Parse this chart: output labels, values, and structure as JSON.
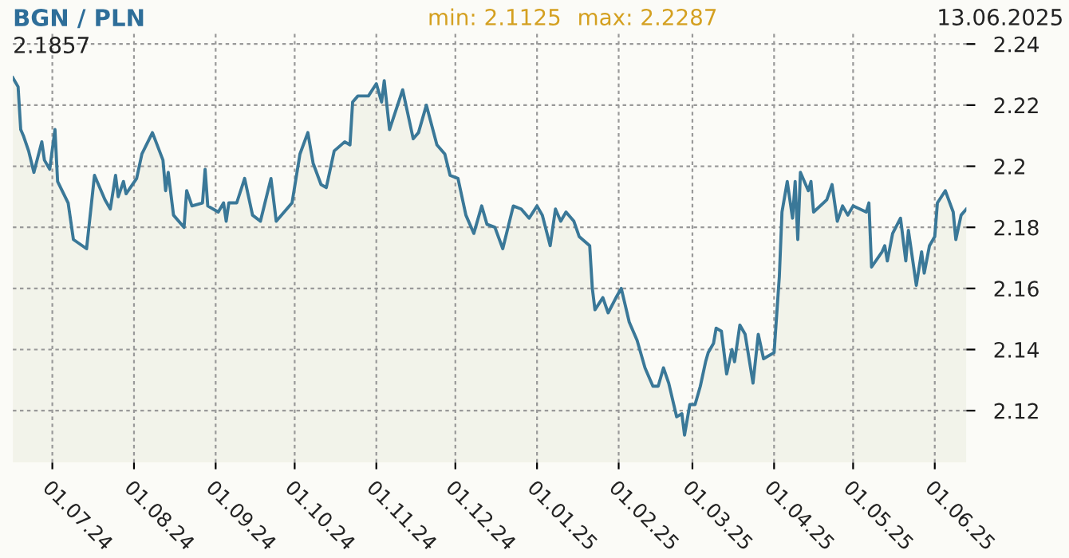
{
  "chart_data": {
    "type": "area",
    "title": "BGN / PLN",
    "annotations": [
      "min: 2.1125",
      "max: 2.2287",
      "13.06.2025",
      "2.1857"
    ],
    "x": [
      "2024-06-16",
      "2024-06-18",
      "2024-06-19",
      "2024-06-20",
      "2024-06-22",
      "2024-06-24",
      "2024-06-27",
      "2024-06-28",
      "2024-06-30",
      "2024-07-02",
      "2024-07-03",
      "2024-07-07",
      "2024-07-09",
      "2024-07-14",
      "2024-07-17",
      "2024-07-21",
      "2024-07-23",
      "2024-07-25",
      "2024-07-26",
      "2024-07-28",
      "2024-07-29",
      "2024-08-02",
      "2024-08-04",
      "2024-08-08",
      "2024-08-12",
      "2024-08-13",
      "2024-08-14",
      "2024-08-16",
      "2024-08-20",
      "2024-08-21",
      "2024-08-23",
      "2024-08-27",
      "2024-08-28",
      "2024-08-29",
      "2024-09-02",
      "2024-09-04",
      "2024-09-05",
      "2024-09-06",
      "2024-09-09",
      "2024-09-12",
      "2024-09-15",
      "2024-09-18",
      "2024-09-22",
      "2024-09-24",
      "2024-09-30",
      "2024-10-03",
      "2024-10-06",
      "2024-10-08",
      "2024-10-11",
      "2024-10-13",
      "2024-10-16",
      "2024-10-20",
      "2024-10-22",
      "2024-10-23",
      "2024-10-25",
      "2024-10-29",
      "2024-11-01",
      "2024-11-03",
      "2024-11-04",
      "2024-11-06",
      "2024-11-11",
      "2024-11-15",
      "2024-11-17",
      "2024-11-20",
      "2024-11-24",
      "2024-11-27",
      "2024-11-29",
      "2024-12-02",
      "2024-12-05",
      "2024-12-08",
      "2024-12-11",
      "2024-12-13",
      "2024-12-16",
      "2024-12-19",
      "2024-12-23",
      "2024-12-26",
      "2024-12-29",
      "2025-01-01",
      "2025-01-03",
      "2025-01-06",
      "2025-01-08",
      "2025-01-10",
      "2025-01-12",
      "2025-01-15",
      "2025-01-17",
      "2025-01-21",
      "2025-01-22",
      "2025-01-23",
      "2025-01-26",
      "2025-01-28",
      "2025-01-31",
      "2025-02-02",
      "2025-02-05",
      "2025-02-08",
      "2025-02-11",
      "2025-02-14",
      "2025-02-16",
      "2025-02-18",
      "2025-02-20",
      "2025-02-23",
      "2025-02-25",
      "2025-02-26",
      "2025-02-28",
      "2025-03-02",
      "2025-03-04",
      "2025-03-06",
      "2025-03-07",
      "2025-03-09",
      "2025-03-10",
      "2025-03-12",
      "2025-03-14",
      "2025-03-16",
      "2025-03-17",
      "2025-03-19",
      "2025-03-21",
      "2025-03-24",
      "2025-03-26",
      "2025-03-28",
      "2025-04-01",
      "2025-04-03",
      "2025-04-04",
      "2025-04-06",
      "2025-04-08",
      "2025-04-09",
      "2025-04-10",
      "2025-04-11",
      "2025-04-14",
      "2025-04-15",
      "2025-04-16",
      "2025-04-21",
      "2025-04-23",
      "2025-04-25",
      "2025-04-27",
      "2025-04-29",
      "2025-05-01",
      "2025-05-06",
      "2025-05-07",
      "2025-05-08",
      "2025-05-12",
      "2025-05-13",
      "2025-05-14",
      "2025-05-16",
      "2025-05-19",
      "2025-05-21",
      "2025-05-22",
      "2025-05-25",
      "2025-05-27",
      "2025-05-28",
      "2025-05-30",
      "2025-06-01",
      "2025-06-02",
      "2025-06-05",
      "2025-06-08",
      "2025-06-09",
      "2025-06-11",
      "2025-06-13"
    ],
    "series": [
      {
        "color": "#3a7898",
        "values": [
          2.229,
          2.226,
          2.212,
          2.21,
          2.205,
          2.198,
          2.208,
          2.202,
          2.199,
          2.212,
          2.195,
          2.188,
          2.176,
          2.173,
          2.197,
          2.189,
          2.186,
          2.197,
          2.19,
          2.195,
          2.191,
          2.196,
          2.204,
          2.211,
          2.202,
          2.192,
          2.198,
          2.184,
          2.18,
          2.192,
          2.187,
          2.188,
          2.199,
          2.187,
          2.185,
          2.188,
          2.182,
          2.188,
          2.188,
          2.196,
          2.184,
          2.182,
          2.196,
          2.182,
          2.188,
          2.204,
          2.211,
          2.201,
          2.194,
          2.193,
          2.205,
          2.208,
          2.207,
          2.221,
          2.223,
          2.223,
          2.227,
          2.221,
          2.228,
          2.212,
          2.225,
          2.209,
          2.211,
          2.22,
          2.207,
          2.204,
          2.197,
          2.196,
          2.184,
          2.178,
          2.187,
          2.181,
          2.18,
          2.173,
          2.187,
          2.186,
          2.183,
          2.187,
          2.184,
          2.174,
          2.186,
          2.182,
          2.185,
          2.182,
          2.177,
          2.174,
          2.16,
          2.153,
          2.157,
          2.152,
          2.157,
          2.16,
          2.149,
          2.143,
          2.134,
          2.128,
          2.128,
          2.134,
          2.129,
          2.118,
          2.119,
          2.112,
          2.122,
          2.122,
          2.128,
          2.136,
          2.139,
          2.142,
          2.147,
          2.146,
          2.132,
          2.14,
          2.136,
          2.148,
          2.145,
          2.129,
          2.145,
          2.137,
          2.139,
          2.164,
          2.185,
          2.195,
          2.183,
          2.195,
          2.176,
          2.198,
          2.192,
          2.195,
          2.185,
          2.189,
          2.194,
          2.182,
          2.187,
          2.184,
          2.187,
          2.185,
          2.188,
          2.167,
          2.172,
          2.174,
          2.169,
          2.178,
          2.183,
          2.169,
          2.179,
          2.161,
          2.172,
          2.165,
          2.174,
          2.177,
          2.188,
          2.192,
          2.185,
          2.176,
          2.184,
          2.186
        ]
      }
    ],
    "xlim": [
      "2024-06-16",
      "2025-06-13"
    ],
    "xticks": [
      {
        "value": "2024-07-01",
        "label": "01.07.24"
      },
      {
        "value": "2024-08-01",
        "label": "01.08.24"
      },
      {
        "value": "2024-09-01",
        "label": "01.09.24"
      },
      {
        "value": "2024-10-01",
        "label": "01.10.24"
      },
      {
        "value": "2024-11-01",
        "label": "01.11.24"
      },
      {
        "value": "2024-12-01",
        "label": "01.12.24"
      },
      {
        "value": "2025-01-01",
        "label": "01.01.25"
      },
      {
        "value": "2025-02-01",
        "label": "01.02.25"
      },
      {
        "value": "2025-03-01",
        "label": "01.03.25"
      },
      {
        "value": "2025-04-01",
        "label": "01.04.25"
      },
      {
        "value": "2025-05-01",
        "label": "01.05.25"
      },
      {
        "value": "2025-06-01",
        "label": "01.06.25"
      }
    ],
    "ylim": [
      2.103,
      2.244
    ],
    "yticks": [
      2.12,
      2.14,
      2.16,
      2.18,
      2.2,
      2.22,
      2.24
    ],
    "grid": true,
    "line_style": "solid",
    "marker": "none"
  }
}
